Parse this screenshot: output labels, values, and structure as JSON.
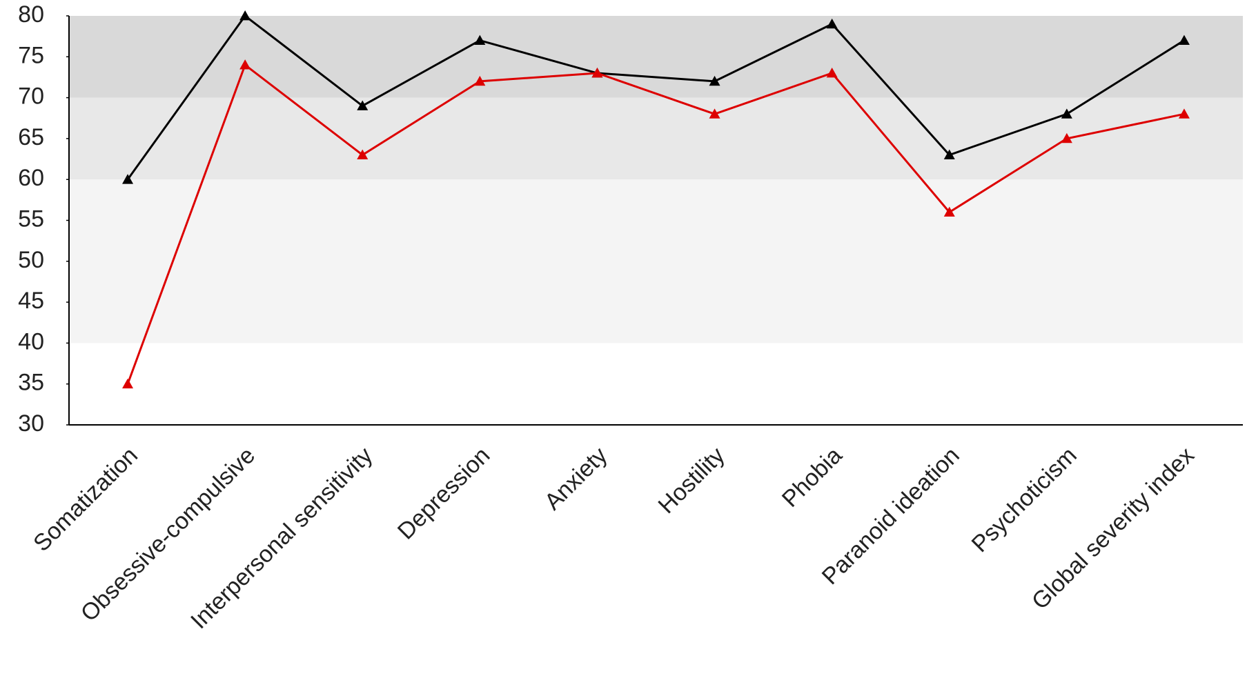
{
  "chart_data": {
    "type": "line",
    "categories": [
      "Somatization",
      "Obsessive-compulsive",
      "Interpersonal sensitivity",
      "Depression",
      "Anxiety",
      "Hostility",
      "Phobia",
      "Paranoid ideation",
      "Psychoticism",
      "Global severity index"
    ],
    "series": [
      {
        "color": "#000000",
        "values": [
          60,
          80,
          69,
          77,
          73,
          72,
          79,
          63,
          68,
          77
        ]
      },
      {
        "color": "#dd0000",
        "values": [
          35,
          74,
          63,
          72,
          73,
          68,
          73,
          56,
          65,
          68
        ]
      }
    ],
    "ylim": [
      30,
      80
    ],
    "yticks": [
      30,
      35,
      40,
      45,
      50,
      55,
      60,
      65,
      70,
      75,
      80
    ],
    "bands": [
      {
        "from": 70,
        "to": 80,
        "color": "#d9d9d9"
      },
      {
        "from": 60,
        "to": 70,
        "color": "#e8e8e8"
      },
      {
        "from": 40,
        "to": 60,
        "color": "#f4f4f4"
      }
    ],
    "marker": "triangle",
    "grid": false
  }
}
